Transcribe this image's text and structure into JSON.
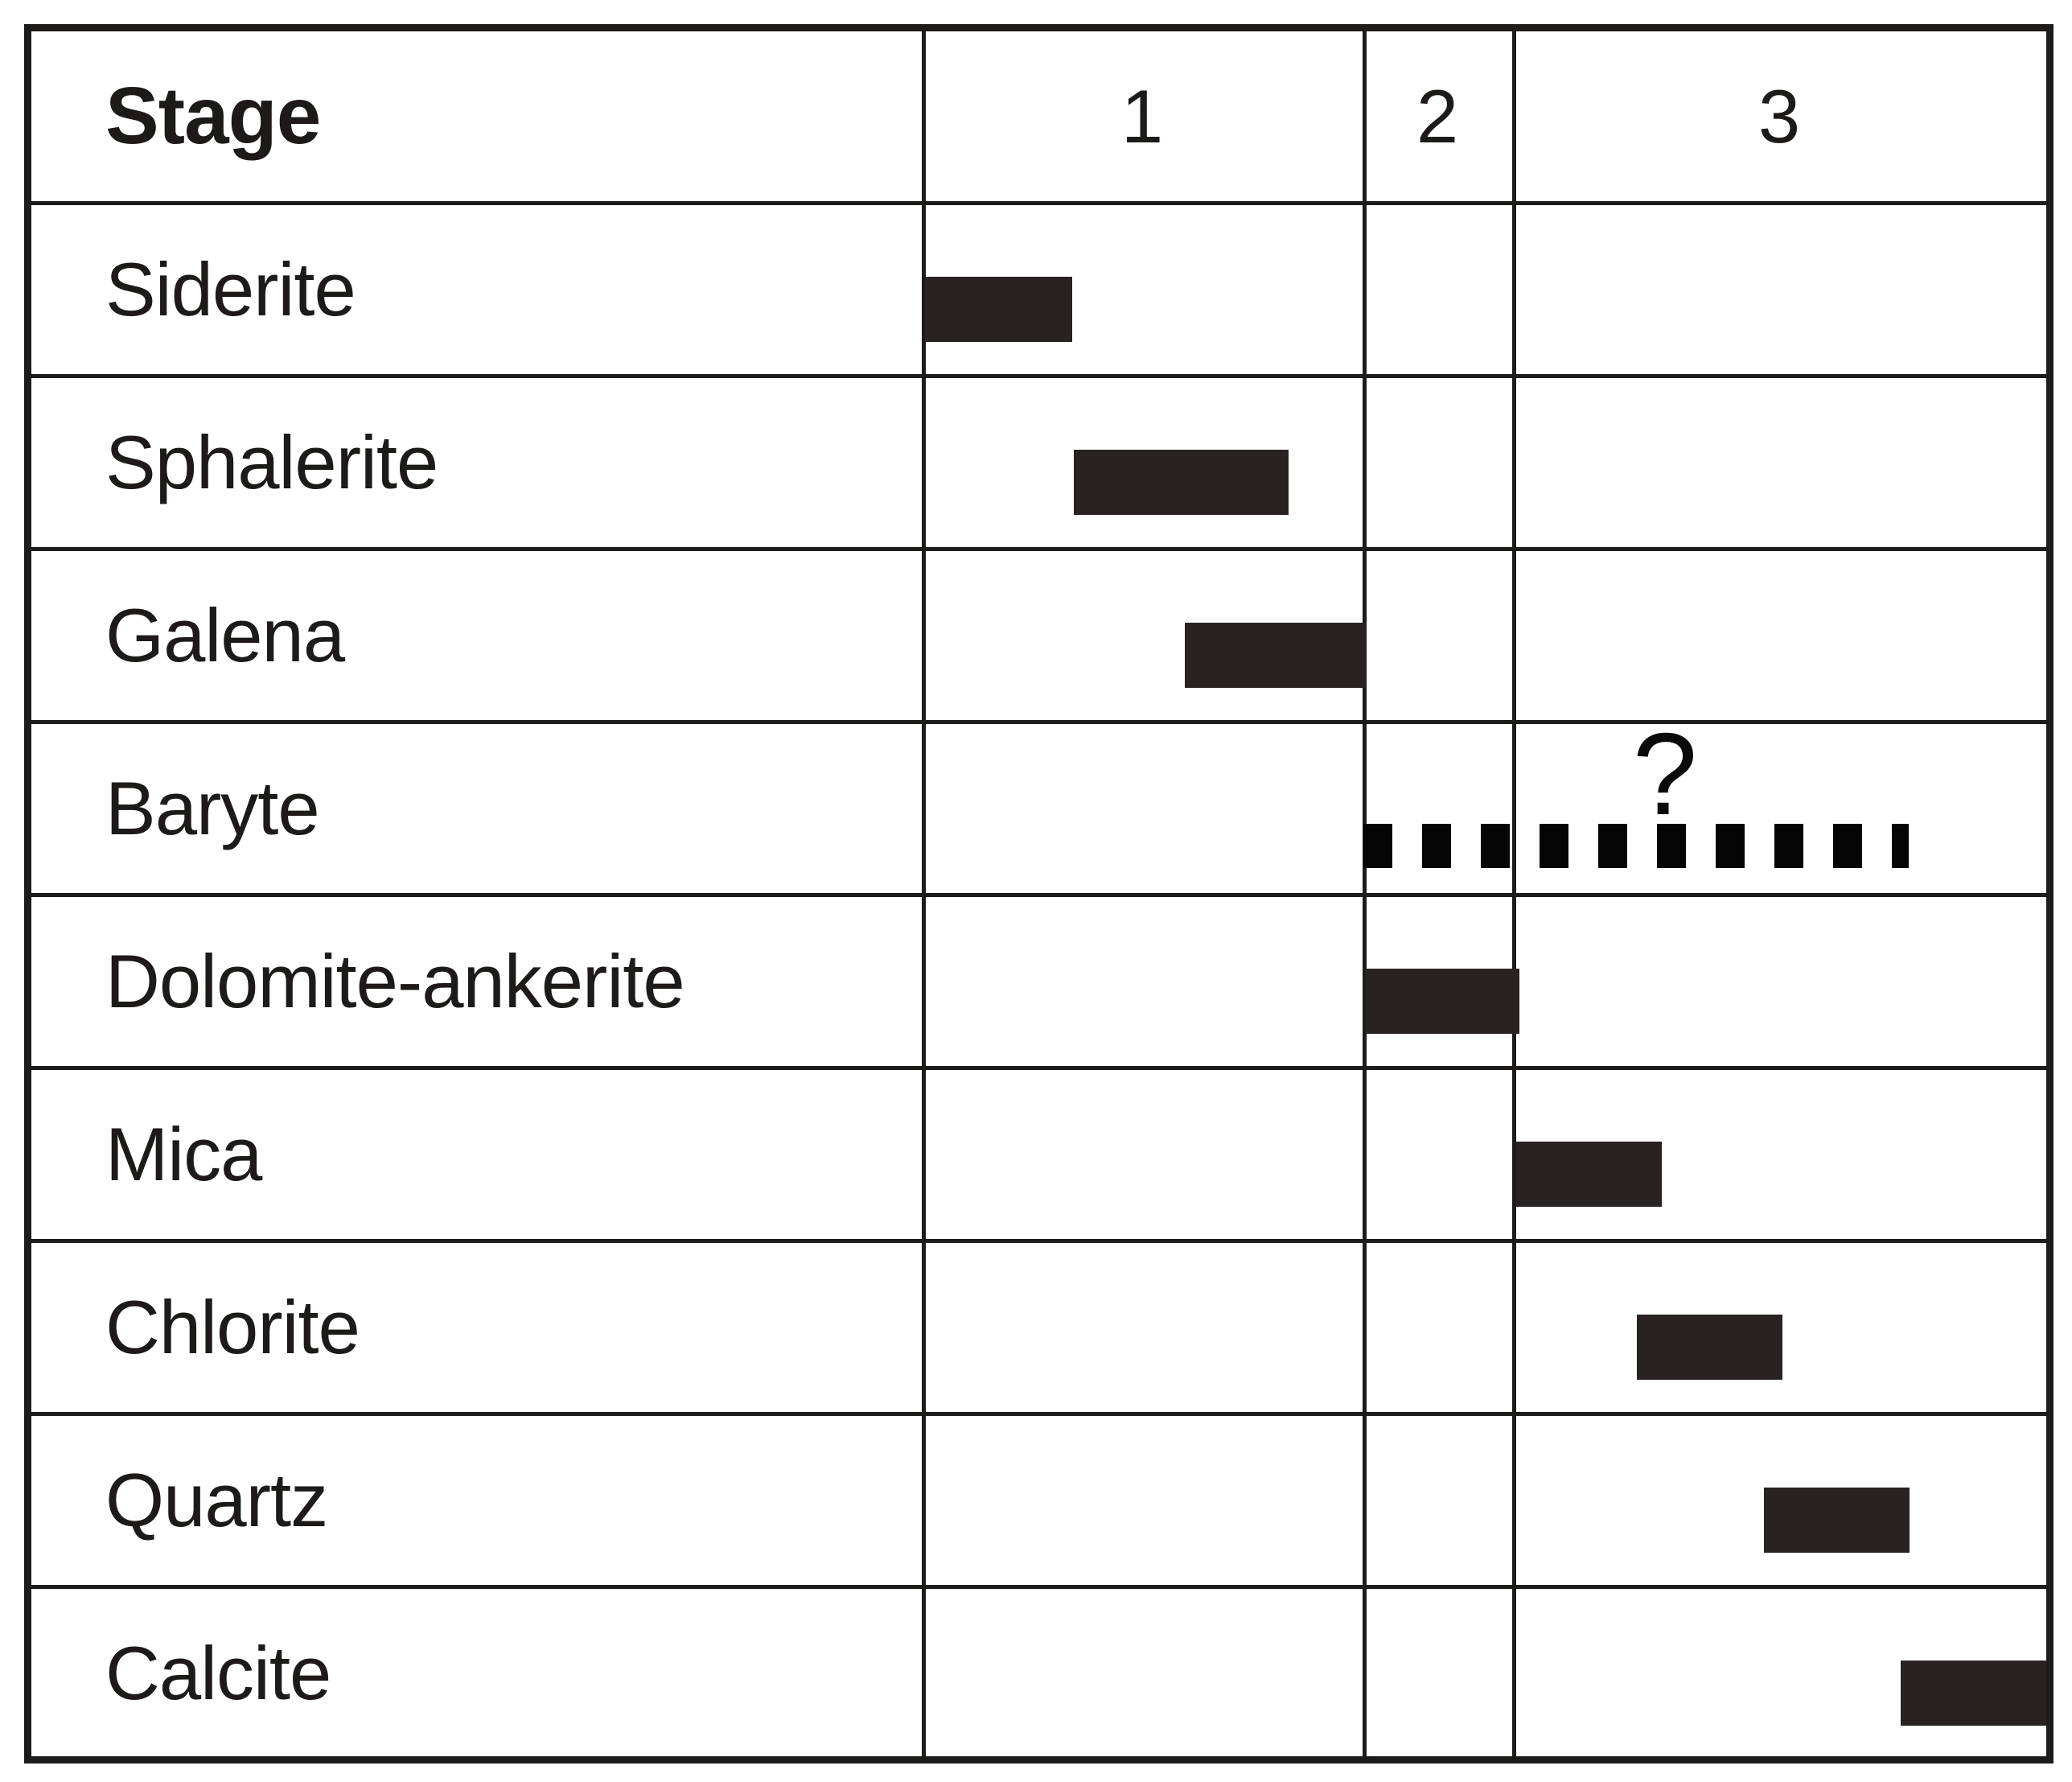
{
  "header": {
    "stage_label": "Stage",
    "columns": [
      "1",
      "2",
      "3"
    ]
  },
  "colors": {
    "background": "#ffffff",
    "grid_line": "#1e1c1b",
    "bar_fill": "#282322",
    "dash_fill": "#050505",
    "text": "#1d1a19"
  },
  "chart_data": {
    "type": "bar",
    "subtype": "paragenetic-sequence-gantt",
    "xlabel": "Stage",
    "stage_tick_labels": [
      "1",
      "2",
      "3"
    ],
    "stage_boundaries_pct": [
      0,
      39.3,
      52.8,
      100
    ],
    "grid": true,
    "minerals": [
      {
        "name": "Siderite",
        "style": "solid",
        "start_pct": 0.0,
        "end_pct": 13.1,
        "stages_covered": [
          "1"
        ]
      },
      {
        "name": "Sphalerite",
        "style": "solid",
        "start_pct": 13.3,
        "end_pct": 32.4,
        "stages_covered": [
          "1"
        ]
      },
      {
        "name": "Galena",
        "style": "solid",
        "start_pct": 23.2,
        "end_pct": 39.3,
        "stages_covered": [
          "1"
        ]
      },
      {
        "name": "Baryte",
        "style": "dashed",
        "start_pct": 39.1,
        "end_pct": 87.7,
        "stages_covered": [
          "2",
          "3"
        ],
        "uncertain": true,
        "query_label": "?",
        "query_pct": 66.0
      },
      {
        "name": "Dolomite-ankerite",
        "style": "solid",
        "start_pct": 39.3,
        "end_pct": 53.0,
        "stages_covered": [
          "2"
        ]
      },
      {
        "name": "Mica",
        "style": "solid",
        "start_pct": 52.7,
        "end_pct": 65.7,
        "stages_covered": [
          "3"
        ]
      },
      {
        "name": "Chlorite",
        "style": "solid",
        "start_pct": 63.5,
        "end_pct": 76.5,
        "stages_covered": [
          "3"
        ]
      },
      {
        "name": "Quartz",
        "style": "solid",
        "start_pct": 74.8,
        "end_pct": 87.8,
        "stages_covered": [
          "3"
        ]
      },
      {
        "name": "Calcite",
        "style": "solid",
        "start_pct": 87.0,
        "end_pct": 100.0,
        "stages_covered": [
          "3"
        ]
      }
    ]
  }
}
